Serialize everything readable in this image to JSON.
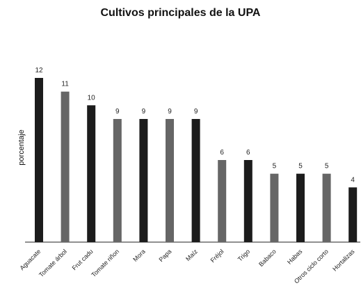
{
  "chart_data": {
    "type": "bar",
    "title": "Cultivos principales de la UPA",
    "ylabel": "porcentaje",
    "xlabel": "",
    "categories": [
      "Aguacate",
      "Tomate árbol",
      "Frut cadu",
      "Tomate riñon",
      "Mora",
      "Papa",
      "Maíz",
      "Fréjol",
      "Trigo",
      "Babaco",
      "Habas",
      "Otros ciclo corto",
      "Hortalizas"
    ],
    "values": [
      12,
      11,
      10,
      9,
      9,
      9,
      9,
      6,
      6,
      5,
      5,
      5,
      4
    ],
    "ylim": [
      0,
      12
    ],
    "grid": false,
    "legend": "none",
    "colors": {
      "dark": "#1c1c1c",
      "gray": "#666666",
      "pattern": [
        "dark",
        "gray",
        "dark",
        "gray",
        "dark",
        "gray",
        "dark",
        "gray",
        "dark",
        "gray",
        "dark",
        "gray",
        "dark"
      ]
    }
  }
}
